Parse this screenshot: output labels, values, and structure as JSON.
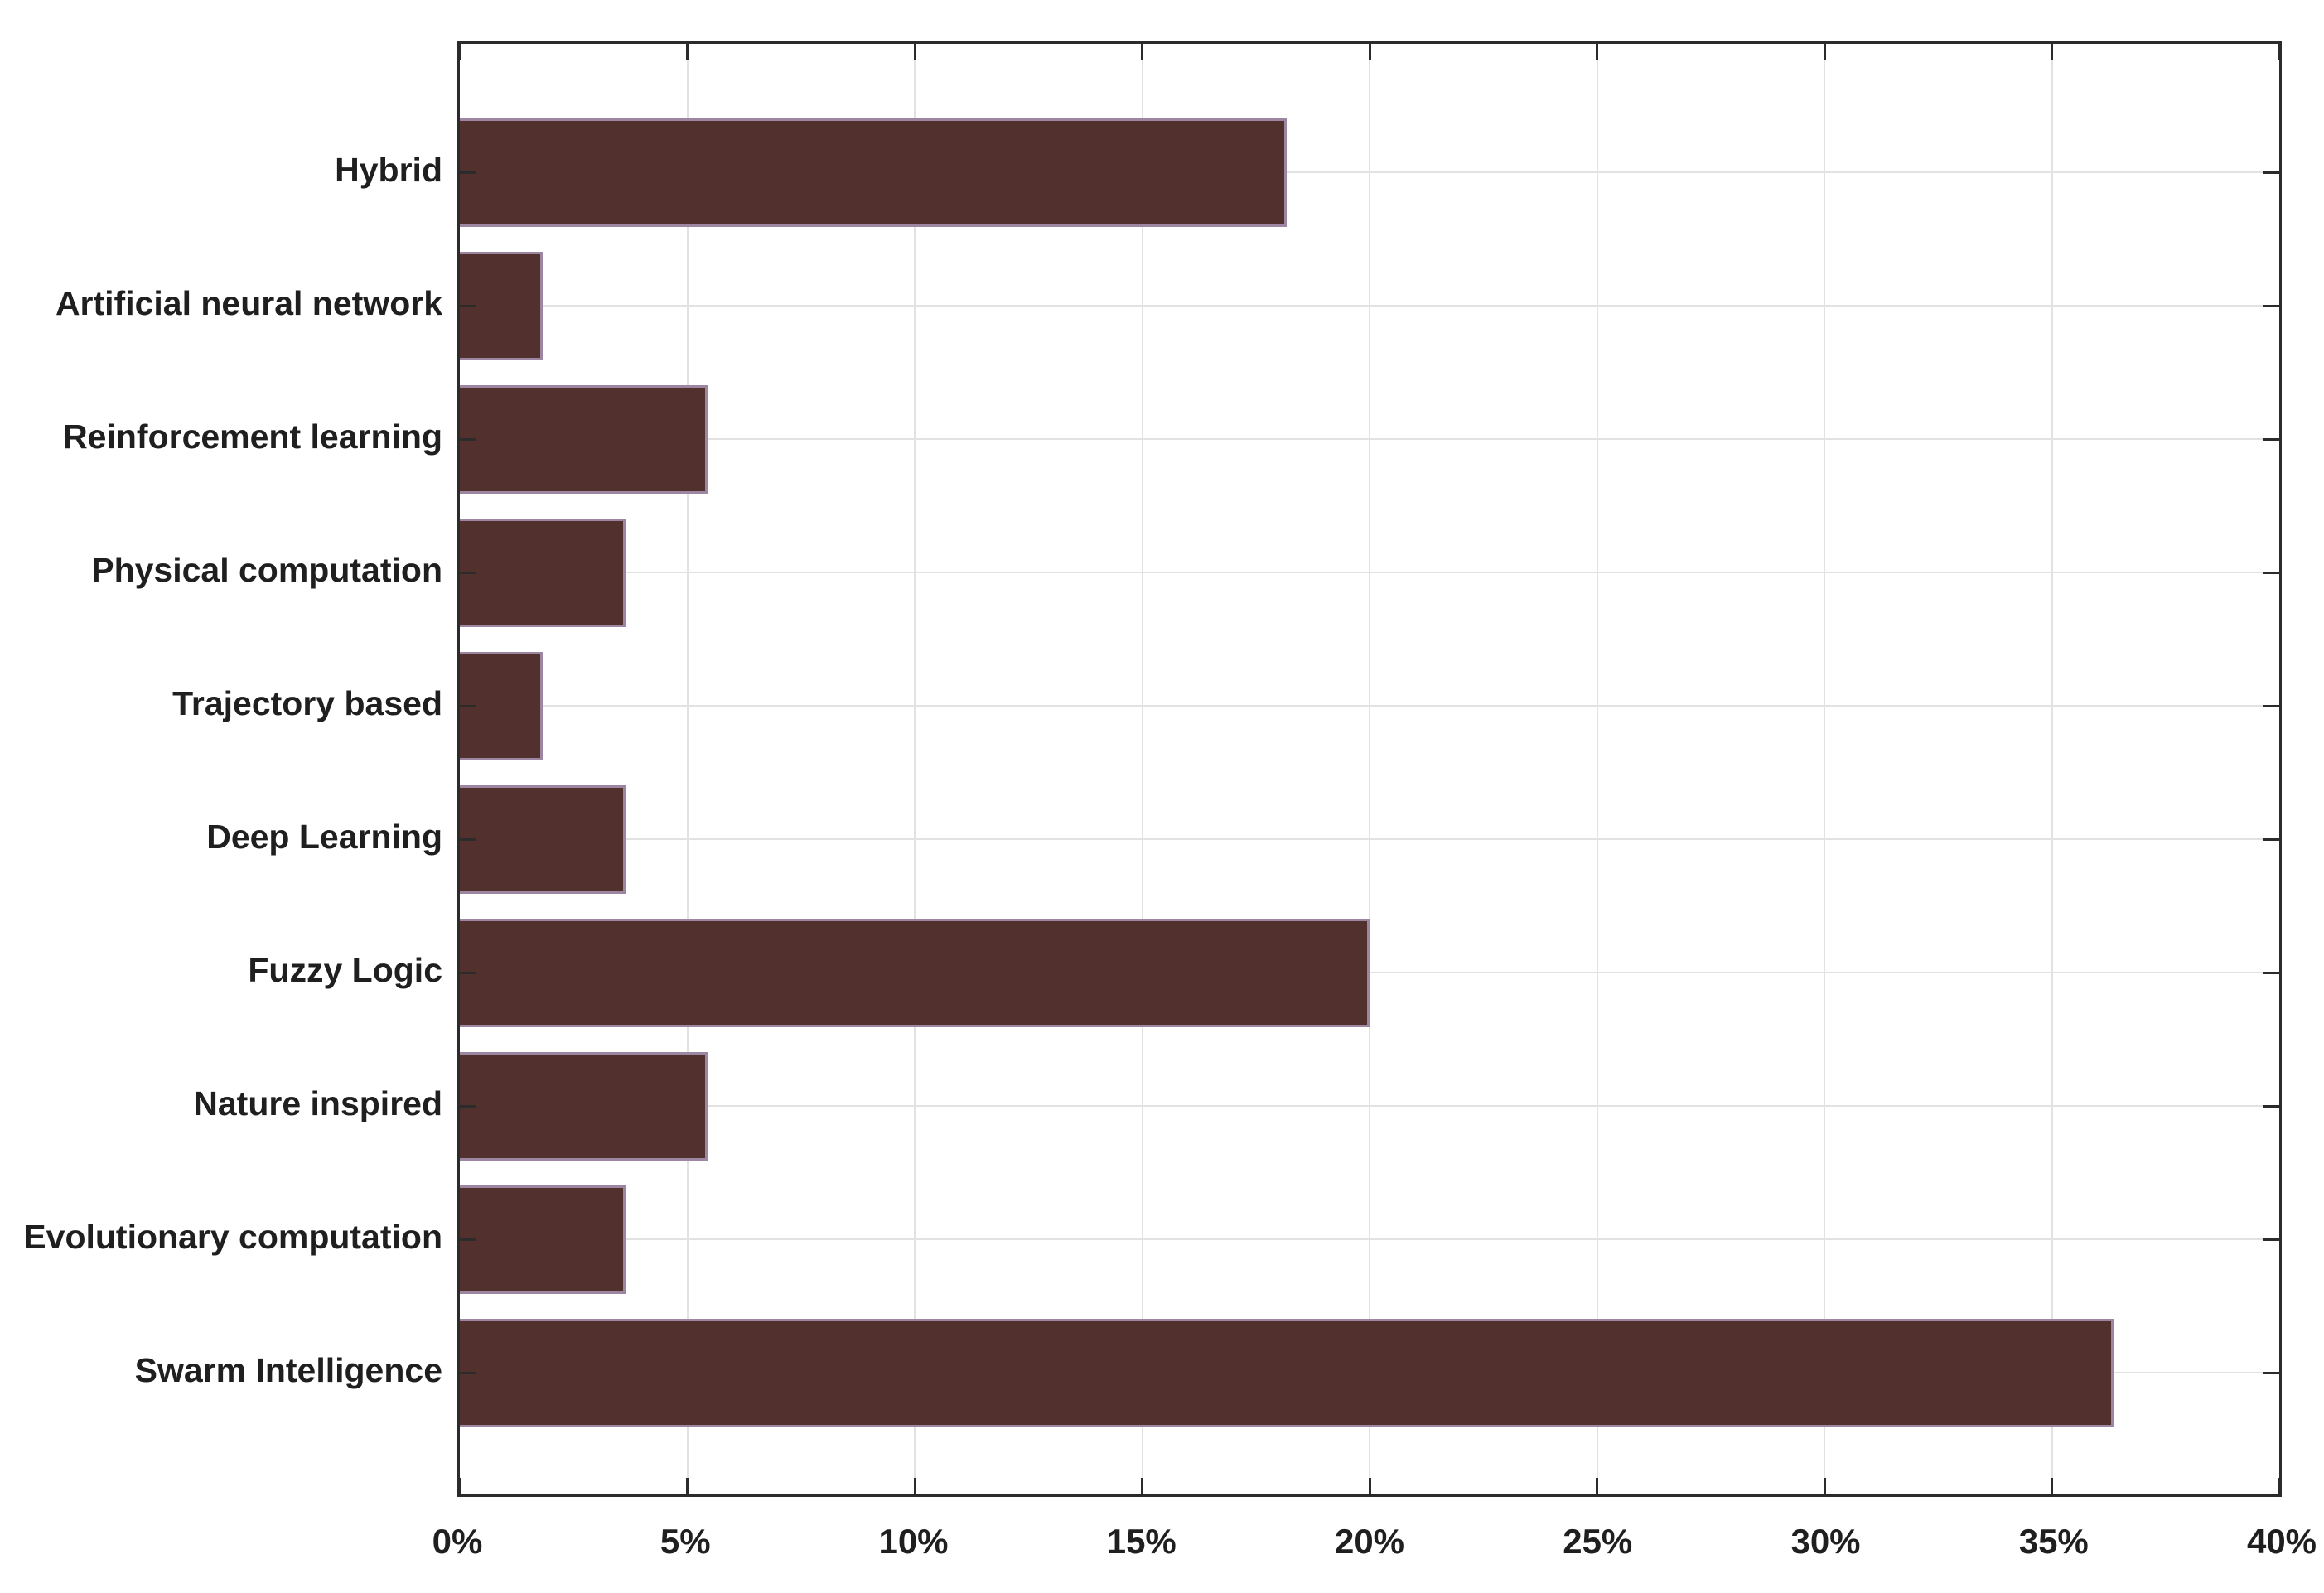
{
  "chart_data": {
    "type": "bar",
    "orientation": "horizontal",
    "title": "",
    "xlabel": "",
    "ylabel": "",
    "categories": [
      "Hybrid",
      "Artificial neural network",
      "Reinforcement learning",
      "Physical computation",
      "Trajectory based",
      "Deep Learning",
      "Fuzzy Logic",
      "Nature inspired",
      "Evolutionary computation",
      "Swarm Intelligence"
    ],
    "values": [
      18.18,
      1.82,
      5.45,
      3.64,
      1.82,
      3.64,
      20.0,
      5.45,
      3.64,
      36.36
    ],
    "value_unit": "%",
    "xlim": [
      0,
      40
    ],
    "x_tick_step": 5,
    "x_tick_labels": [
      "0%",
      "5%",
      "10%",
      "15%",
      "20%",
      "25%",
      "30%",
      "35%",
      "40%"
    ],
    "grid": "both",
    "legend": "none",
    "colors": {
      "bar_fill": "#52302d",
      "bar_edge": "#9c86a2",
      "axis": "#2b2b2b",
      "grid": "#e2e2e2",
      "text": "#1f1f1f",
      "background": "#ffffff"
    }
  }
}
